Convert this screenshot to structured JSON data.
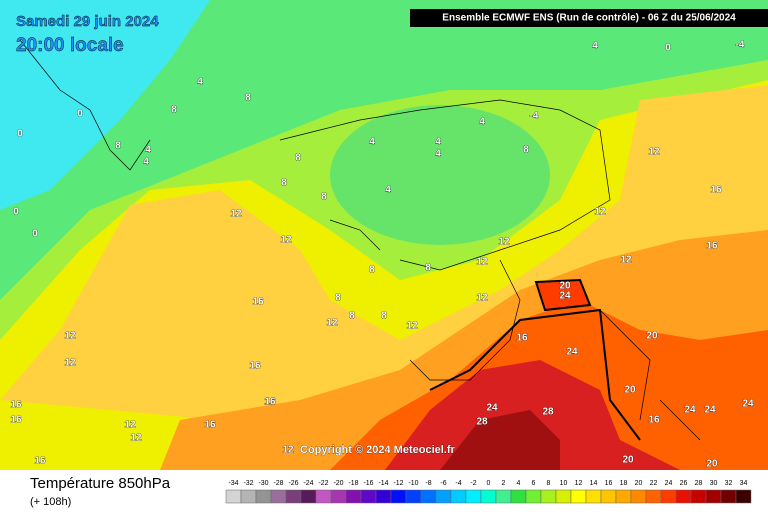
{
  "header": {
    "date": "Samedi 29 juin 2024",
    "time": "20:00 locale",
    "model": "Ensemble ECMWF ENS  (Run de contrôle)  -  06 Z du 25/06/2024"
  },
  "map": {
    "copyright": "Copyright © 2024 Meteociel.fr",
    "contour_labels": [
      4,
      0,
      -4,
      4,
      0,
      0,
      4,
      8,
      8,
      4,
      8,
      0,
      0,
      8,
      4,
      4,
      4,
      4,
      -4,
      4,
      8,
      8,
      12,
      12,
      16,
      16,
      12,
      16,
      8,
      8,
      12,
      8,
      12,
      12,
      8,
      12,
      8,
      16,
      12,
      16,
      16,
      12,
      12,
      20,
      24,
      24,
      24,
      28,
      28,
      20,
      20,
      24,
      24,
      20,
      16,
      16,
      24,
      20,
      12,
      16,
      12,
      12,
      8,
      12,
      16,
      16,
      16,
      12
    ],
    "legend": {
      "title": "Température 850hPa",
      "lead": "(+ 108h)",
      "values": [
        -34,
        -32,
        -30,
        -28,
        -26,
        -24,
        -22,
        -20,
        -18,
        -16,
        -14,
        -12,
        -10,
        -8,
        -6,
        -4,
        -2,
        0,
        2,
        4,
        6,
        8,
        10,
        12,
        14,
        16,
        18,
        20,
        22,
        24,
        26,
        28,
        30,
        32,
        34
      ],
      "colors": [
        "#d4d4d4",
        "#b4b4b4",
        "#949494",
        "#9a6e9a",
        "#7a3e7a",
        "#581a58",
        "#c456c4",
        "#a636b0",
        "#8410b0",
        "#6008c8",
        "#3400d8",
        "#0010ff",
        "#0040ff",
        "#0070ff",
        "#00a0ff",
        "#00ccff",
        "#00eeff",
        "#00ffd0",
        "#40f090",
        "#30e040",
        "#70f030",
        "#a8f020",
        "#d8f000",
        "#ffff00",
        "#ffe000",
        "#ffc400",
        "#ffa800",
        "#ff8800",
        "#ff6400",
        "#ff3c00",
        "#e81000",
        "#c80000",
        "#a00000",
        "#700000",
        "#3c0000"
      ]
    }
  }
}
